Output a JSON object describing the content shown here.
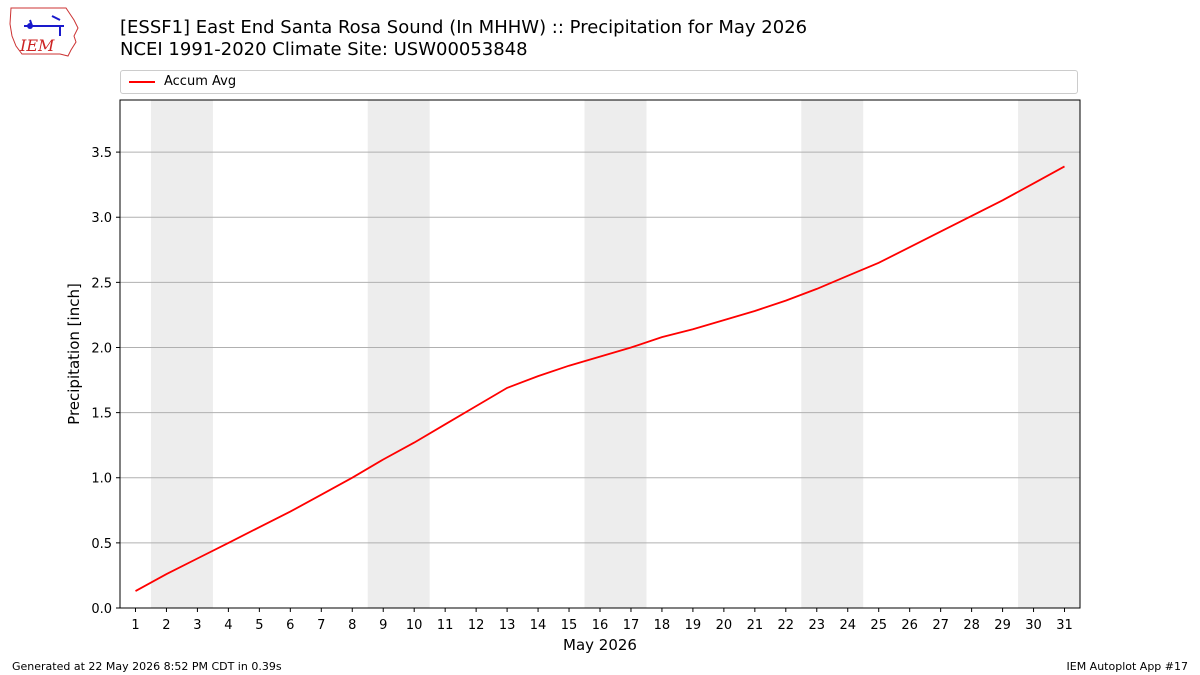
{
  "header": {
    "title_line1": "[ESSF1] East End Santa Rosa Sound (In MHHW) :: Precipitation for May 2026",
    "title_line2": "NCEI 1991-2020 Climate Site: USW00053848",
    "logo_text": "IEM"
  },
  "footer": {
    "generated": "Generated at 22 May 2026 8:52 PM CDT in 0.39s",
    "app": "IEM Autoplot App #17"
  },
  "colors": {
    "series": "#ff0000",
    "weekend_band": "#ededed",
    "grid": "#b0b0b0"
  },
  "chart_data": {
    "type": "line",
    "xlabel": "May 2026",
    "ylabel": "Precipitation [inch]",
    "xlim": [
      0.5,
      31.5
    ],
    "ylim": [
      0,
      3.9
    ],
    "yticks": [
      0.0,
      0.5,
      1.0,
      1.5,
      2.0,
      2.5,
      3.0,
      3.5
    ],
    "ytick_labels": [
      "0.0",
      "0.5",
      "1.0",
      "1.5",
      "2.0",
      "2.5",
      "3.0",
      "3.5"
    ],
    "xticks": [
      1,
      2,
      3,
      4,
      5,
      6,
      7,
      8,
      9,
      10,
      11,
      12,
      13,
      14,
      15,
      16,
      17,
      18,
      19,
      20,
      21,
      22,
      23,
      24,
      25,
      26,
      27,
      28,
      29,
      30,
      31
    ],
    "grid": "horizontal",
    "legend_position": "top",
    "weekend_bands": [
      [
        2,
        3
      ],
      [
        9,
        10
      ],
      [
        16,
        17
      ],
      [
        23,
        24
      ],
      [
        30,
        31
      ]
    ],
    "series": [
      {
        "name": "Accum Avg",
        "color": "#ff0000",
        "x": [
          1,
          2,
          3,
          4,
          5,
          6,
          7,
          8,
          9,
          10,
          11,
          12,
          13,
          14,
          15,
          16,
          17,
          18,
          19,
          20,
          21,
          22,
          23,
          24,
          25,
          26,
          27,
          28,
          29,
          30,
          31
        ],
        "y": [
          0.13,
          0.26,
          0.38,
          0.5,
          0.62,
          0.74,
          0.87,
          1.0,
          1.14,
          1.27,
          1.41,
          1.55,
          1.69,
          1.78,
          1.86,
          1.93,
          2.0,
          2.08,
          2.14,
          2.21,
          2.28,
          2.36,
          2.45,
          2.55,
          2.65,
          2.77,
          2.89,
          3.01,
          3.13,
          3.26,
          3.39
        ]
      }
    ]
  }
}
